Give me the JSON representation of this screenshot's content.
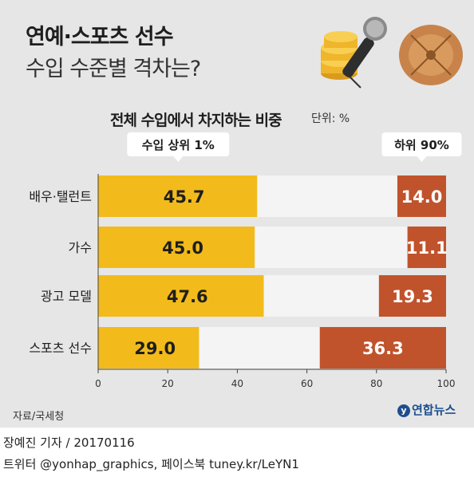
{
  "title_line1": "연예·스포츠 선수",
  "title_line2": "수입 수준별 격차는?",
  "subtitle": "전체 수입에서 차지하는 비중",
  "unit": "단위: %",
  "source": "자료/국세청",
  "logo": "연합뉴스",
  "footer_line1": "장예진 기자 / 20170116",
  "footer_line2": "트위터 @yonhap_graphics, 페이스북 tuney.kr/LeYN1",
  "colors": {
    "top": "#f2bb1b",
    "bottom": "#c0532c",
    "track": "#f4f4f4",
    "background": "#e6e6e6"
  },
  "chart_data": {
    "type": "bar",
    "orientation": "horizontal",
    "categories": [
      "배우·탤런트",
      "가수",
      "광고 모델",
      "스포츠 선수"
    ],
    "series": [
      {
        "name": "수입 상위 1%",
        "values": [
          45.7,
          45.0,
          47.6,
          29.0
        ],
        "anchor": "left"
      },
      {
        "name": "하위 90%",
        "values": [
          14.0,
          11.1,
          19.3,
          36.3
        ],
        "anchor": "right"
      }
    ],
    "value_labels": {
      "top": [
        "45.7",
        "45.0",
        "47.6",
        "29.0"
      ],
      "bottom": [
        "14.0",
        "11.1",
        "19.3",
        "36.3"
      ]
    },
    "xlim": [
      0,
      100
    ],
    "ticks": [
      0,
      20,
      40,
      60,
      80,
      100
    ],
    "tick_labels": [
      "0",
      "20",
      "40",
      "60",
      "80",
      "100"
    ],
    "legend_position": "top"
  }
}
